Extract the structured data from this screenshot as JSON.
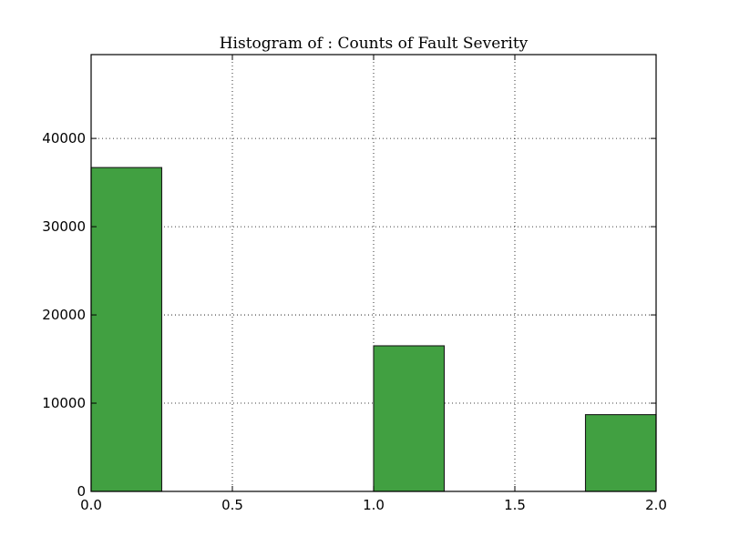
{
  "chart_data": {
    "type": "bar",
    "title": "Histogram of : Counts of Fault Severity",
    "xlabel": "",
    "ylabel": "",
    "xlim": [
      0.0,
      2.0
    ],
    "ylim": [
      0,
      49500
    ],
    "grid": true,
    "bar_color": "#41a041",
    "bins": [
      {
        "x0": 0.0,
        "x1": 0.25,
        "count": 36700
      },
      {
        "x0": 0.25,
        "x1": 0.5,
        "count": 0
      },
      {
        "x0": 0.5,
        "x1": 0.75,
        "count": 0
      },
      {
        "x0": 0.75,
        "x1": 1.0,
        "count": 0
      },
      {
        "x0": 1.0,
        "x1": 1.25,
        "count": 16500
      },
      {
        "x0": 1.25,
        "x1": 1.5,
        "count": 0
      },
      {
        "x0": 1.5,
        "x1": 1.75,
        "count": 0
      },
      {
        "x0": 1.75,
        "x1": 2.0,
        "count": 8700
      }
    ],
    "xticks": [
      0.0,
      0.5,
      1.0,
      1.5,
      2.0
    ],
    "xtick_labels": [
      "0.0",
      "0.5",
      "1.0",
      "1.5",
      "2.0"
    ],
    "yticks": [
      0,
      10000,
      20000,
      30000,
      40000
    ],
    "ytick_labels": [
      "0",
      "10000",
      "20000",
      "30000",
      "40000"
    ]
  }
}
